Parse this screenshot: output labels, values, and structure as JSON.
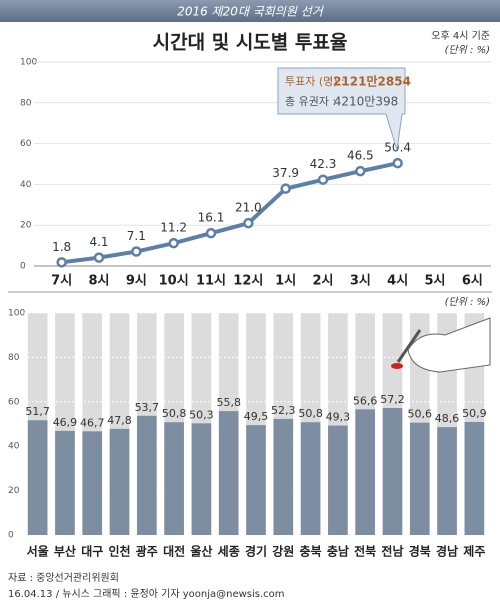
{
  "header": {
    "banner": "2016 제20대 국회의원 선거",
    "title": "시간대 및 시도별 투표율",
    "basis": "오후 4시 기준"
  },
  "callout": {
    "voters_label": "투표자 (명) :",
    "voters": "2121만2854",
    "electorate_label": "총 유권자 :",
    "electorate": "4210만398"
  },
  "chart_data": [
    {
      "type": "line",
      "unit": "(단위 : %)",
      "color": "#5b7fa6",
      "grid": true,
      "categories": [
        "7시",
        "8시",
        "9시",
        "10시",
        "11시",
        "12시",
        "1시",
        "2시",
        "3시",
        "4시",
        "5시",
        "6시"
      ],
      "values": [
        1.8,
        4.1,
        7.1,
        11.2,
        16.1,
        21.0,
        37.9,
        42.3,
        46.5,
        50.4,
        null,
        null
      ],
      "value_labels": [
        "1.8",
        "4.1",
        "7.1",
        "11.2",
        "16.1",
        "21.0",
        "37.9",
        "42.3",
        "46.5",
        "50.4",
        null,
        null
      ],
      "ylim": [
        0,
        100
      ],
      "yticks": [
        0,
        20,
        40,
        60,
        80,
        100
      ]
    },
    {
      "type": "bar",
      "unit": "(단위 : %)",
      "color": "#7d8ea3",
      "grid": true,
      "categories": [
        "서울",
        "부산",
        "대구",
        "인천",
        "광주",
        "대전",
        "울산",
        "세종",
        "경기",
        "강원",
        "충북",
        "충남",
        "전북",
        "전남",
        "경북",
        "경남",
        "제주"
      ],
      "values": [
        51.7,
        46.9,
        46.7,
        47.8,
        53.7,
        50.8,
        50.3,
        55.8,
        49.5,
        52.3,
        50.8,
        49.3,
        56.6,
        57.2,
        50.6,
        48.6,
        50.9
      ],
      "value_labels": [
        "51,7",
        "46,9",
        "46,7",
        "47,8",
        "53,7",
        "50,8",
        "50,3",
        "55,8",
        "49,5",
        "52,3",
        "50,8",
        "49,3",
        "56,6",
        "57,2",
        "50,6",
        "48,6",
        "50,9"
      ],
      "ylim": [
        0,
        100
      ],
      "yticks": [
        0,
        20,
        40,
        60,
        80,
        100
      ]
    }
  ],
  "footer": {
    "source": "자료 : 중앙선거관리위원회",
    "credit": "16.04.13 / 뉴시스 그래픽 : 윤정아 기자 yoonja@newsis.com"
  }
}
